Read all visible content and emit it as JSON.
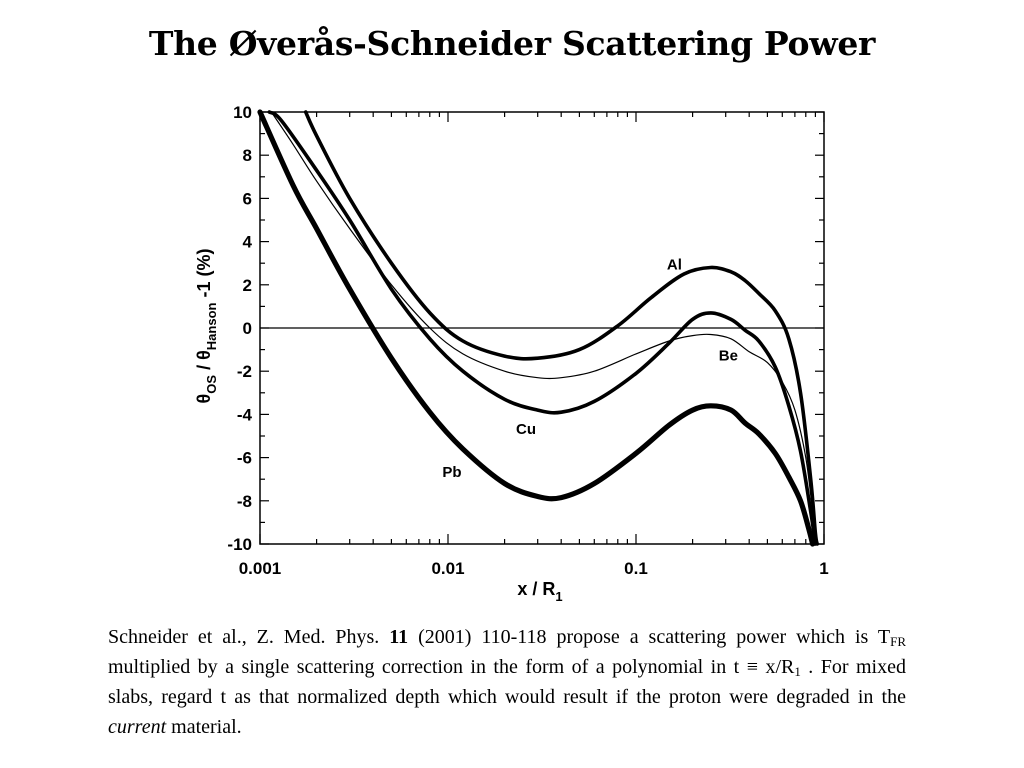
{
  "title": "The Øverås-Schneider Scattering Power",
  "caption": {
    "p1": "Schneider et al., Z. Med. Phys. ",
    "volume": "11",
    "p2": " (2001) 110-118 propose a scattering power which is T",
    "sub1": "FR",
    "p3": " multiplied by a single scattering correction in the form of a polynomial in t ≡ x/R",
    "sub2": "1",
    "p4": " . For mixed slabs, regard t as that normalized depth which would result if the proton were degraded in the ",
    "emph": "current",
    "p5": " material."
  },
  "chart_data": {
    "type": "line",
    "x_scale": "log",
    "xlim": [
      0.001,
      1
    ],
    "ylim": [
      -10,
      10
    ],
    "xlabel": "x / R1",
    "ylabel": "θOS / θHanson  -1   (%)",
    "x_ticks": [
      {
        "value": 0.001,
        "label": "0.001"
      },
      {
        "value": 0.01,
        "label": "0.01"
      },
      {
        "value": 0.1,
        "label": "0.1"
      },
      {
        "value": 1,
        "label": "1"
      }
    ],
    "y_ticks": [
      {
        "value": 10,
        "label": "10"
      },
      {
        "value": 8,
        "label": "8"
      },
      {
        "value": 6,
        "label": "6"
      },
      {
        "value": 4,
        "label": "4"
      },
      {
        "value": 2,
        "label": "2"
      },
      {
        "value": 0,
        "label": "0"
      },
      {
        "value": -2,
        "label": "-2"
      },
      {
        "value": -4,
        "label": "-4"
      },
      {
        "value": -6,
        "label": "-6"
      },
      {
        "value": -8,
        "label": "-8"
      },
      {
        "value": -10,
        "label": "-10"
      }
    ],
    "reference_line": 0,
    "series": [
      {
        "name": "Al",
        "label_at": [
          0.16,
          2.7
        ],
        "points": [
          [
            0.00175,
            10.0
          ],
          [
            0.002,
            8.9
          ],
          [
            0.003,
            6.0
          ],
          [
            0.005,
            3.0
          ],
          [
            0.008,
            0.7
          ],
          [
            0.012,
            -0.6
          ],
          [
            0.02,
            -1.3
          ],
          [
            0.03,
            -1.4
          ],
          [
            0.05,
            -1.0
          ],
          [
            0.08,
            0.1
          ],
          [
            0.12,
            1.4
          ],
          [
            0.18,
            2.5
          ],
          [
            0.25,
            2.8
          ],
          [
            0.32,
            2.6
          ],
          [
            0.38,
            2.2
          ],
          [
            0.45,
            1.6
          ],
          [
            0.55,
            0.8
          ],
          [
            0.65,
            -0.5
          ],
          [
            0.75,
            -3.0
          ],
          [
            0.85,
            -7.0
          ],
          [
            0.9,
            -9.5
          ],
          [
            0.92,
            -10.0
          ]
        ]
      },
      {
        "name": "Be",
        "label_at": [
          0.31,
          -1.5
        ],
        "points": [
          [
            0.00115,
            10.0
          ],
          [
            0.0015,
            8.5
          ],
          [
            0.002,
            6.8
          ],
          [
            0.003,
            4.6
          ],
          [
            0.005,
            2.0
          ],
          [
            0.008,
            0.0
          ],
          [
            0.012,
            -1.2
          ],
          [
            0.02,
            -2.0
          ],
          [
            0.03,
            -2.3
          ],
          [
            0.04,
            -2.3
          ],
          [
            0.06,
            -2.0
          ],
          [
            0.1,
            -1.2
          ],
          [
            0.15,
            -0.6
          ],
          [
            0.2,
            -0.35
          ],
          [
            0.25,
            -0.3
          ],
          [
            0.32,
            -0.5
          ],
          [
            0.4,
            -1.1
          ],
          [
            0.5,
            -1.6
          ],
          [
            0.6,
            -2.5
          ],
          [
            0.7,
            -3.8
          ],
          [
            0.8,
            -6.0
          ],
          [
            0.87,
            -8.5
          ],
          [
            0.91,
            -10.0
          ]
        ]
      },
      {
        "name": "Cu",
        "label_at": [
          0.026,
          -4.9
        ],
        "points": [
          [
            0.00112,
            10.0
          ],
          [
            0.0013,
            9.6
          ],
          [
            0.002,
            7.3
          ],
          [
            0.003,
            5.0
          ],
          [
            0.005,
            1.8
          ],
          [
            0.008,
            -0.5
          ],
          [
            0.012,
            -2.0
          ],
          [
            0.02,
            -3.3
          ],
          [
            0.03,
            -3.8
          ],
          [
            0.04,
            -3.9
          ],
          [
            0.06,
            -3.4
          ],
          [
            0.1,
            -2.1
          ],
          [
            0.15,
            -0.7
          ],
          [
            0.2,
            0.4
          ],
          [
            0.25,
            0.7
          ],
          [
            0.32,
            0.4
          ],
          [
            0.38,
            -0.1
          ],
          [
            0.45,
            -0.6
          ],
          [
            0.55,
            -1.8
          ],
          [
            0.65,
            -3.6
          ],
          [
            0.75,
            -5.7
          ],
          [
            0.85,
            -8.5
          ],
          [
            0.9,
            -10.0
          ]
        ]
      },
      {
        "name": "Pb",
        "label_at": [
          0.0105,
          -6.9
        ],
        "points": [
          [
            0.001,
            10.0
          ],
          [
            0.0015,
            6.6
          ],
          [
            0.002,
            4.6
          ],
          [
            0.003,
            1.8
          ],
          [
            0.005,
            -1.4
          ],
          [
            0.008,
            -3.9
          ],
          [
            0.012,
            -5.6
          ],
          [
            0.02,
            -7.2
          ],
          [
            0.03,
            -7.8
          ],
          [
            0.04,
            -7.85
          ],
          [
            0.06,
            -7.2
          ],
          [
            0.1,
            -5.8
          ],
          [
            0.15,
            -4.5
          ],
          [
            0.2,
            -3.8
          ],
          [
            0.25,
            -3.6
          ],
          [
            0.32,
            -3.8
          ],
          [
            0.38,
            -4.4
          ],
          [
            0.45,
            -4.9
          ],
          [
            0.55,
            -5.8
          ],
          [
            0.65,
            -6.9
          ],
          [
            0.75,
            -8.0
          ],
          [
            0.83,
            -9.3
          ],
          [
            0.87,
            -10.0
          ]
        ]
      }
    ]
  }
}
